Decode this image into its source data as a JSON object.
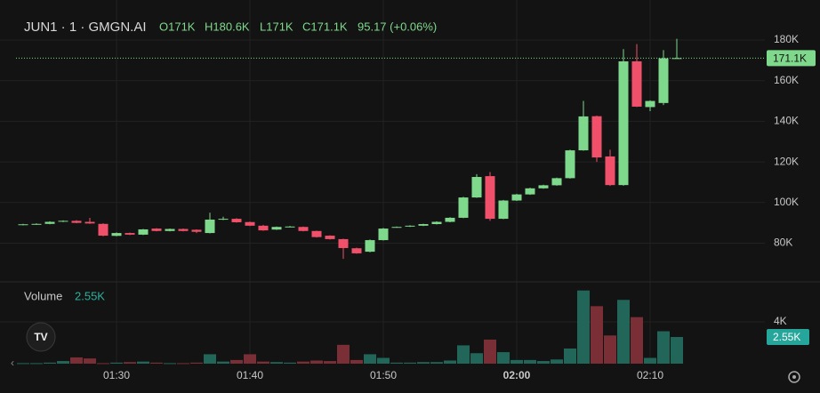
{
  "header": {
    "symbol": "JUN1 · 1 · GMGN.AI",
    "open": "O171K",
    "high": "H180.6K",
    "low": "L171K",
    "close": "C171.1K",
    "change": "95.17 (+0.06%)"
  },
  "chart_data": {
    "type": "candlestick",
    "categories": [
      null,
      null,
      null,
      null,
      null,
      null,
      null,
      "01:30",
      null,
      null,
      null,
      null,
      null,
      null,
      null,
      null,
      null,
      "01:40",
      null,
      null,
      null,
      null,
      null,
      null,
      null,
      null,
      null,
      "01:50",
      null,
      null,
      null,
      null,
      null,
      null,
      null,
      null,
      null,
      "02:00",
      null,
      null,
      null,
      null,
      null,
      null,
      null,
      null,
      null,
      "02:10",
      null,
      null
    ],
    "open": [
      89,
      89.3,
      89.5,
      90.6,
      91,
      90.5,
      89.5,
      83.6,
      85,
      84.2,
      87.2,
      86,
      87,
      86.6,
      85,
      91.6,
      92,
      90.4,
      88.6,
      86.7,
      88,
      88,
      86,
      83.7,
      82,
      77.5,
      75.8,
      81.5,
      87.8,
      88.2,
      88.6,
      89.4,
      90.5,
      92.5,
      102.5,
      113,
      92,
      101,
      104,
      107,
      108.5,
      112,
      125.7,
      142.5,
      122.7,
      108.6,
      169.5,
      147,
      149,
      171
    ],
    "high": [
      89.5,
      89.8,
      90.8,
      91.2,
      91.3,
      92.5,
      89.8,
      85.3,
      85.2,
      87,
      87.4,
      87.2,
      87.2,
      86.8,
      95,
      93,
      92.3,
      90.6,
      89,
      88.2,
      88.5,
      88.2,
      86.2,
      83.9,
      82.2,
      77.8,
      81.8,
      87.5,
      88.2,
      88.8,
      89.6,
      90.8,
      92.8,
      102.8,
      114,
      115,
      101.3,
      104.3,
      107.3,
      108.8,
      112.3,
      126,
      150,
      142.8,
      126,
      175.5,
      178,
      150.3,
      175,
      180.6
    ],
    "low": [
      88.8,
      89.1,
      89.3,
      90.4,
      89.8,
      89.5,
      83.4,
      83.4,
      84,
      84,
      85.8,
      85.8,
      85.8,
      85,
      84.8,
      91.4,
      90.1,
      88.4,
      86.1,
      86.5,
      87.8,
      85.8,
      82.8,
      81.8,
      72.3,
      74.8,
      75.5,
      81.3,
      87.6,
      88,
      88.4,
      89.2,
      90.3,
      92.3,
      102.3,
      91,
      91.8,
      100.8,
      103.8,
      106.8,
      108.3,
      111.8,
      125.5,
      120,
      108.2,
      108.3,
      147,
      145,
      148,
      171
    ],
    "close": [
      89.3,
      89.5,
      90.5,
      91,
      90,
      89.7,
      83.7,
      85,
      84.2,
      86.8,
      86,
      87,
      86,
      85.6,
      91.6,
      92,
      90.3,
      88.6,
      86.3,
      88,
      88.2,
      86,
      83,
      82,
      77.6,
      75,
      81.5,
      87.2,
      88,
      88.6,
      89.4,
      90.5,
      92.5,
      102.5,
      112.6,
      92,
      101,
      104,
      107,
      108.5,
      112,
      125.7,
      142.4,
      122.2,
      108.6,
      169.5,
      147.2,
      150,
      171,
      171.1
    ],
    "up_color": "#7fd98c",
    "down_color": "#f0506a",
    "ylim": [
      61.4,
      199.7
    ],
    "yticks": [
      {
        "value": 80,
        "label": "80K"
      },
      {
        "value": 100,
        "label": "100K"
      },
      {
        "value": 120,
        "label": "120K"
      },
      {
        "value": 140,
        "label": "140K"
      },
      {
        "value": 160,
        "label": "160K"
      },
      {
        "value": 180,
        "label": "180K"
      }
    ],
    "last_price": {
      "value": 171.1,
      "label": "171.1K"
    },
    "grid": true,
    "volume": {
      "title": "Volume",
      "up_color": "#22665a",
      "down_color": "#7a2e35",
      "values": [
        0.05,
        0.05,
        0.1,
        0.25,
        0.6,
        0.5,
        0.05,
        0.1,
        0.15,
        0.2,
        0.1,
        0.05,
        0.05,
        0.1,
        0.9,
        0.2,
        0.35,
        0.9,
        0.2,
        0.15,
        0.1,
        0.2,
        0.3,
        0.25,
        1.8,
        0.35,
        0.9,
        0.55,
        0.1,
        0.1,
        0.15,
        0.15,
        0.3,
        1.75,
        1.0,
        2.3,
        1.1,
        0.35,
        0.35,
        0.25,
        0.4,
        1.45,
        7.0,
        5.5,
        2.7,
        6.1,
        4.45,
        0.55,
        3.1,
        2.55
      ],
      "ylim": [
        0,
        7.74
      ],
      "yticks": [
        {
          "value": 4,
          "label": "4K"
        }
      ],
      "last": {
        "value": 2.55,
        "label": "2.55K"
      }
    }
  }
}
